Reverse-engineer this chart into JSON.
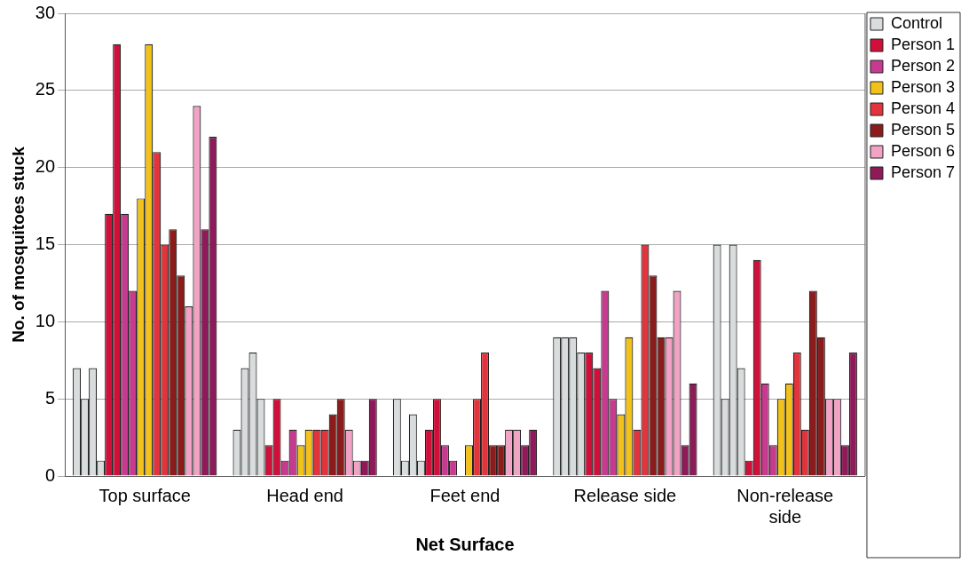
{
  "chart_data": {
    "type": "bar",
    "xlabel": "Net Surface",
    "ylabel": "No. of mosquitoes stuck",
    "categories": [
      "Top surface",
      "Head end",
      "Feet end",
      "Release side",
      "Non-release side"
    ],
    "ylim": [
      0,
      30
    ],
    "yticks": [
      0,
      5,
      10,
      15,
      20,
      25,
      30
    ],
    "grid": "y",
    "legend": "right",
    "series": [
      {
        "name": "Control",
        "color": "#d8dcdc",
        "values": [
          7,
          3,
          5,
          9,
          15
        ]
      },
      {
        "color": "#d8dcdc",
        "values": [
          5,
          7,
          1,
          9,
          5
        ]
      },
      {
        "color": "#d8dcdc",
        "values": [
          7,
          8,
          4,
          9,
          15
        ]
      },
      {
        "color": "#d8dcdc",
        "values": [
          1,
          5,
          1,
          8,
          7
        ]
      },
      {
        "name": "Person 1",
        "color": "#d0103a",
        "values": [
          17,
          2,
          3,
          8,
          1
        ]
      },
      {
        "color": "#d0103a",
        "values": [
          28,
          5,
          5,
          7,
          14
        ]
      },
      {
        "name": "Person 2",
        "color": "#c83a90",
        "values": [
          17,
          1,
          2,
          12,
          6
        ]
      },
      {
        "color": "#c83a90",
        "values": [
          12,
          3,
          1,
          5,
          2
        ]
      },
      {
        "name": "Person 3",
        "color": "#f2c21b",
        "values": [
          18,
          2,
          0,
          4,
          5
        ]
      },
      {
        "color": "#f2c21b",
        "values": [
          28,
          3,
          2,
          9,
          6
        ]
      },
      {
        "name": "Person 4",
        "color": "#e2343c",
        "values": [
          21,
          3,
          5,
          3,
          8
        ]
      },
      {
        "color": "#e2343c",
        "values": [
          15,
          3,
          8,
          15,
          3
        ]
      },
      {
        "name": "Person 5",
        "color": "#8c1c1c",
        "values": [
          16,
          4,
          2,
          13,
          12
        ]
      },
      {
        "color": "#8c1c1c",
        "values": [
          13,
          5,
          2,
          9,
          9
        ]
      },
      {
        "name": "Person 6",
        "color": "#f2a2c4",
        "values": [
          11,
          3,
          3,
          9,
          5
        ]
      },
      {
        "color": "#f2a2c4",
        "values": [
          24,
          1,
          3,
          12,
          5
        ]
      },
      {
        "name": "Person 7",
        "color": "#8e1a5a",
        "values": [
          16,
          1,
          2,
          2,
          2
        ]
      },
      {
        "color": "#8e1a5a",
        "values": [
          22,
          5,
          3,
          6,
          8
        ]
      }
    ]
  }
}
